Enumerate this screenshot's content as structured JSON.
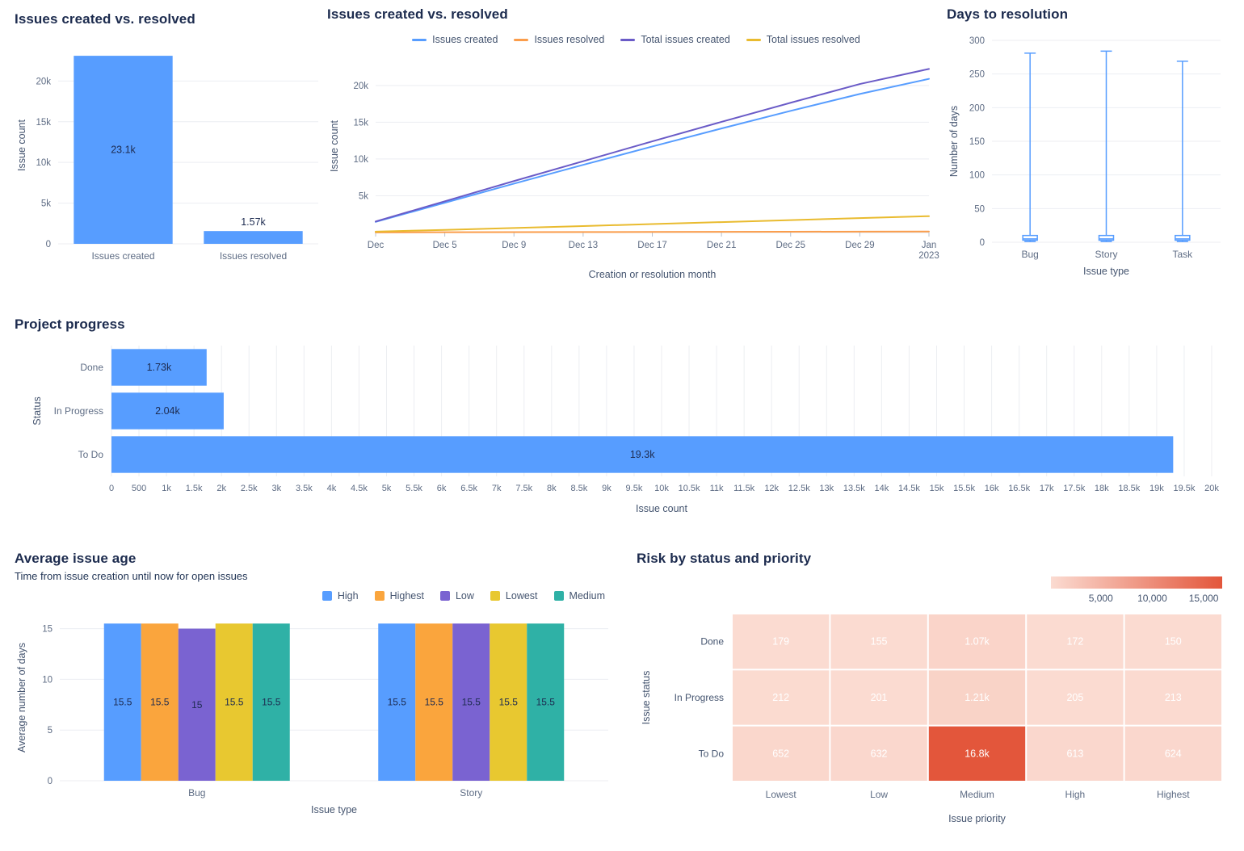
{
  "chart_data": [
    {
      "id": "issues-created-vs-resolved-bar",
      "type": "bar",
      "title": "Issues created vs. resolved",
      "ylabel": "Issue count",
      "categories": [
        "Issues created",
        "Issues resolved"
      ],
      "values": [
        23100,
        1570
      ],
      "value_labels": [
        "23.1k",
        "1.57k"
      ],
      "yticks": [
        0,
        5000,
        10000,
        15000,
        20000
      ],
      "ytick_labels": [
        "0",
        "5k",
        "10k",
        "15k",
        "20k"
      ],
      "ylim": [
        0,
        24200
      ],
      "bar_color": "#579dff"
    },
    {
      "id": "issues-created-vs-resolved-line",
      "type": "line",
      "title": "Issues created vs. resolved",
      "xlabel": "Creation or resolution month",
      "ylabel": "Issue count",
      "x_ticks": [
        "Dec",
        "Dec 5",
        "Dec 9",
        "Dec 13",
        "Dec 17",
        "Dec 21",
        "Dec 25",
        "Dec 29",
        [
          "Jan",
          "2023"
        ]
      ],
      "yticks": [
        5000,
        10000,
        15000,
        20000
      ],
      "ytick_labels": [
        "5k",
        "10k",
        "15k",
        "20k"
      ],
      "ylim": [
        0,
        23500
      ],
      "legend_position": "top-center",
      "series": [
        {
          "name": "Issues created",
          "color": "#579dff",
          "values": [
            1450,
            4050,
            6650,
            9200,
            11700,
            14150,
            16550,
            18850,
            20900
          ]
        },
        {
          "name": "Issues resolved",
          "color": "#fb9d4b",
          "values": [
            20,
            35,
            50,
            65,
            80,
            95,
            110,
            125,
            140
          ]
        },
        {
          "name": "Total issues created",
          "color": "#6a5bc7",
          "values": [
            1500,
            4250,
            7000,
            9700,
            12400,
            15050,
            17650,
            20200,
            22250
          ]
        },
        {
          "name": "Total issues resolved",
          "color": "#e9bb2f",
          "values": [
            120,
            360,
            620,
            880,
            1150,
            1420,
            1690,
            1960,
            2230
          ]
        }
      ]
    },
    {
      "id": "days-to-resolution",
      "type": "boxplot",
      "title": "Days to resolution",
      "xlabel": "Issue type",
      "ylabel": "Number of days",
      "categories": [
        "Bug",
        "Story",
        "Task"
      ],
      "yticks": [
        0,
        50,
        100,
        150,
        200,
        250,
        300
      ],
      "ytick_labels": [
        "0",
        "50",
        "100",
        "150",
        "200",
        "250",
        "300"
      ],
      "ylim": [
        0,
        300
      ],
      "color": "#579dff",
      "items": [
        {
          "min": 1,
          "q1": 3,
          "median": 5,
          "q3": 10,
          "max": 281
        },
        {
          "min": 1,
          "q1": 3,
          "median": 5,
          "q3": 10,
          "max": 284
        },
        {
          "min": 1,
          "q1": 3,
          "median": 5,
          "q3": 10,
          "max": 269
        }
      ]
    },
    {
      "id": "project-progress",
      "type": "bar-horizontal",
      "title": "Project progress",
      "xlabel": "Issue count",
      "ylabel": "Status",
      "categories": [
        "Done",
        "In Progress",
        "To Do"
      ],
      "values": [
        1730,
        2040,
        19300
      ],
      "value_labels": [
        "1.73k",
        "2.04k",
        "19.3k"
      ],
      "xlim": [
        0,
        20000
      ],
      "xtick_labels": [
        "0",
        "500",
        "1k",
        "1.5k",
        "2k",
        "2.5k",
        "3k",
        "3.5k",
        "4k",
        "4.5k",
        "5k",
        "5.5k",
        "6k",
        "6.5k",
        "7k",
        "7.5k",
        "8k",
        "8.5k",
        "9k",
        "9.5k",
        "10k",
        "10.5k",
        "11k",
        "11.5k",
        "12k",
        "12.5k",
        "13k",
        "13.5k",
        "14k",
        "14.5k",
        "15k",
        "15.5k",
        "16k",
        "16.5k",
        "17k",
        "17.5k",
        "18k",
        "18.5k",
        "19k",
        "19.5k",
        "20k"
      ],
      "bar_color": "#579dff"
    },
    {
      "id": "average-issue-age",
      "type": "grouped-bar",
      "title": "Average issue age",
      "subtitle": "Time from issue creation until now for open issues",
      "xlabel": "Issue type",
      "ylabel": "Average number of days",
      "categories": [
        "Bug",
        "Story"
      ],
      "yticks": [
        0,
        5,
        10,
        15
      ],
      "ytick_labels": [
        "0",
        "5",
        "10",
        "15"
      ],
      "ylim": [
        0,
        16.4
      ],
      "legend_position": "top-right",
      "series": [
        {
          "name": "High",
          "color": "#579dff",
          "values": [
            15.5,
            15.5
          ],
          "labels": [
            "15.5",
            "15.5"
          ]
        },
        {
          "name": "Highest",
          "color": "#faa53d",
          "values": [
            15.5,
            15.5
          ],
          "labels": [
            "15.5",
            "15.5"
          ]
        },
        {
          "name": "Low",
          "color": "#7a63d1",
          "values": [
            15,
            15.5
          ],
          "labels": [
            "15",
            "15.5"
          ]
        },
        {
          "name": "Lowest",
          "color": "#e8c830",
          "values": [
            15.5,
            15.5
          ],
          "labels": [
            "15.5",
            "15.5"
          ]
        },
        {
          "name": "Medium",
          "color": "#2fb1a6",
          "values": [
            15.5,
            15.5
          ],
          "labels": [
            "15.5",
            "15.5"
          ]
        }
      ]
    },
    {
      "id": "risk-by-status-and-priority",
      "type": "heatmap",
      "title": "Risk by status and priority",
      "xlabel": "Issue priority",
      "ylabel": "Issue status",
      "x_categories": [
        "Lowest",
        "Low",
        "Medium",
        "High",
        "Highest"
      ],
      "y_categories": [
        "Done",
        "In Progress",
        "To Do"
      ],
      "rows": [
        {
          "label": "Done",
          "values": [
            179,
            155,
            1070,
            172,
            150
          ],
          "value_labels": [
            "179",
            "155",
            "1.07k",
            "172",
            "150"
          ]
        },
        {
          "label": "In Progress",
          "values": [
            212,
            201,
            1210,
            205,
            213
          ],
          "value_labels": [
            "212",
            "201",
            "1.21k",
            "205",
            "213"
          ]
        },
        {
          "label": "To Do",
          "values": [
            652,
            632,
            16800,
            613,
            624
          ],
          "value_labels": [
            "652",
            "632",
            "16.8k",
            "613",
            "624"
          ]
        }
      ],
      "scale": {
        "min": 150,
        "max": 16800,
        "min_color": "#fbdbd1",
        "max_color": "#e3563b"
      },
      "colorbar_ticks": [
        5000,
        10000,
        15000
      ],
      "colorbar_tick_labels": [
        "5,000",
        "10,000",
        "15,000"
      ]
    }
  ]
}
